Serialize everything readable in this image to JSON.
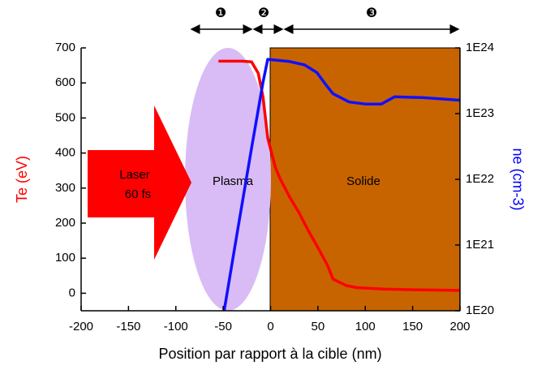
{
  "chart_data": {
    "type": "line",
    "xlabel": "Position par rapport à la cible (nm)",
    "ylabel": "Te (eV)",
    "y2label": "ne (cm-3)",
    "xlim": [
      -200,
      200
    ],
    "xticks": [
      -200,
      -150,
      -100,
      -50,
      0,
      50,
      100,
      150,
      200
    ],
    "ylim": [
      -50,
      700
    ],
    "yticks": [
      0,
      100,
      200,
      300,
      400,
      500,
      600,
      700
    ],
    "y2lim": [
      1e+20,
      1e+24
    ],
    "y2log": true,
    "y2ticks": [
      {
        "value": 1e+20,
        "label": "1E20"
      },
      {
        "value": 1e+21,
        "label": "1E21"
      },
      {
        "value": 1e+22,
        "label": "1E22"
      },
      {
        "value": 1e+23,
        "label": "1E23"
      },
      {
        "value": 1e+24,
        "label": "1E24"
      }
    ],
    "series": [
      {
        "color": "#ff0000",
        "axis": "y",
        "x": [
          -55,
          -30,
          -20,
          -13,
          -8,
          -3,
          5,
          10,
          20,
          30,
          40,
          50,
          60,
          66,
          80,
          91,
          120,
          150,
          200
        ],
        "values": [
          662,
          662,
          660,
          628,
          560,
          443,
          360,
          327,
          275,
          230,
          178,
          130,
          80,
          40,
          22,
          16,
          12,
          10,
          8
        ]
      },
      {
        "color": "#1010ff",
        "axis": "y2",
        "x": [
          -49,
          -35,
          -20,
          -8,
          -3,
          20,
          36,
          49,
          58,
          66,
          83,
          100,
          117,
          131,
          160,
          200
        ],
        "values": [
          1e+20,
          1.6e+21,
          3e+22,
          3e+23,
          6.7e+23,
          6.2e+23,
          5.5e+23,
          4.2e+23,
          2.8e+23,
          2e+23,
          1.5e+23,
          1.4e+23,
          1.4e+23,
          1.8e+23,
          1.75e+23,
          1.6e+23
        ]
      }
    ],
    "annotations": {
      "laser": [
        "Laser",
        "60 fs"
      ],
      "plasma": "Plasma",
      "solide": "Solide",
      "zones": [
        "❶",
        "❷",
        "❸"
      ]
    }
  }
}
